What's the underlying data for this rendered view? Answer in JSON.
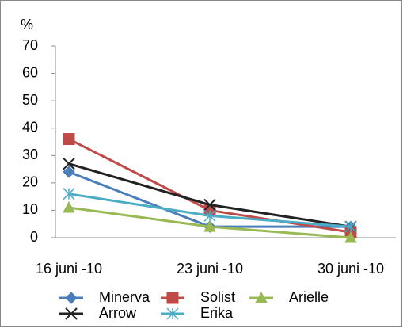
{
  "chart_data": {
    "type": "line",
    "y_label": "%",
    "categories": [
      "16 juni -10",
      "23 juni -10",
      "30 juni -10"
    ],
    "series": [
      {
        "name": "Minerva",
        "color": "#4a7ebb",
        "marker": "diamond",
        "values": [
          24,
          4,
          4
        ]
      },
      {
        "name": "Solist",
        "color": "#be4b48",
        "marker": "square",
        "values": [
          36,
          10,
          2
        ]
      },
      {
        "name": "Arielle",
        "color": "#98b954",
        "marker": "triangle",
        "values": [
          11,
          4,
          0
        ]
      },
      {
        "name": "Arrow",
        "color": "#222222",
        "marker": "x",
        "values": [
          27,
          12,
          4
        ]
      },
      {
        "name": "Erika",
        "color": "#4bacc6",
        "marker": "star",
        "values": [
          16,
          8,
          4
        ]
      }
    ],
    "ylim": [
      0,
      70
    ],
    "yticks": [
      0,
      10,
      20,
      30,
      40,
      50,
      60,
      70
    ],
    "grid": false,
    "legend": "bottom"
  }
}
